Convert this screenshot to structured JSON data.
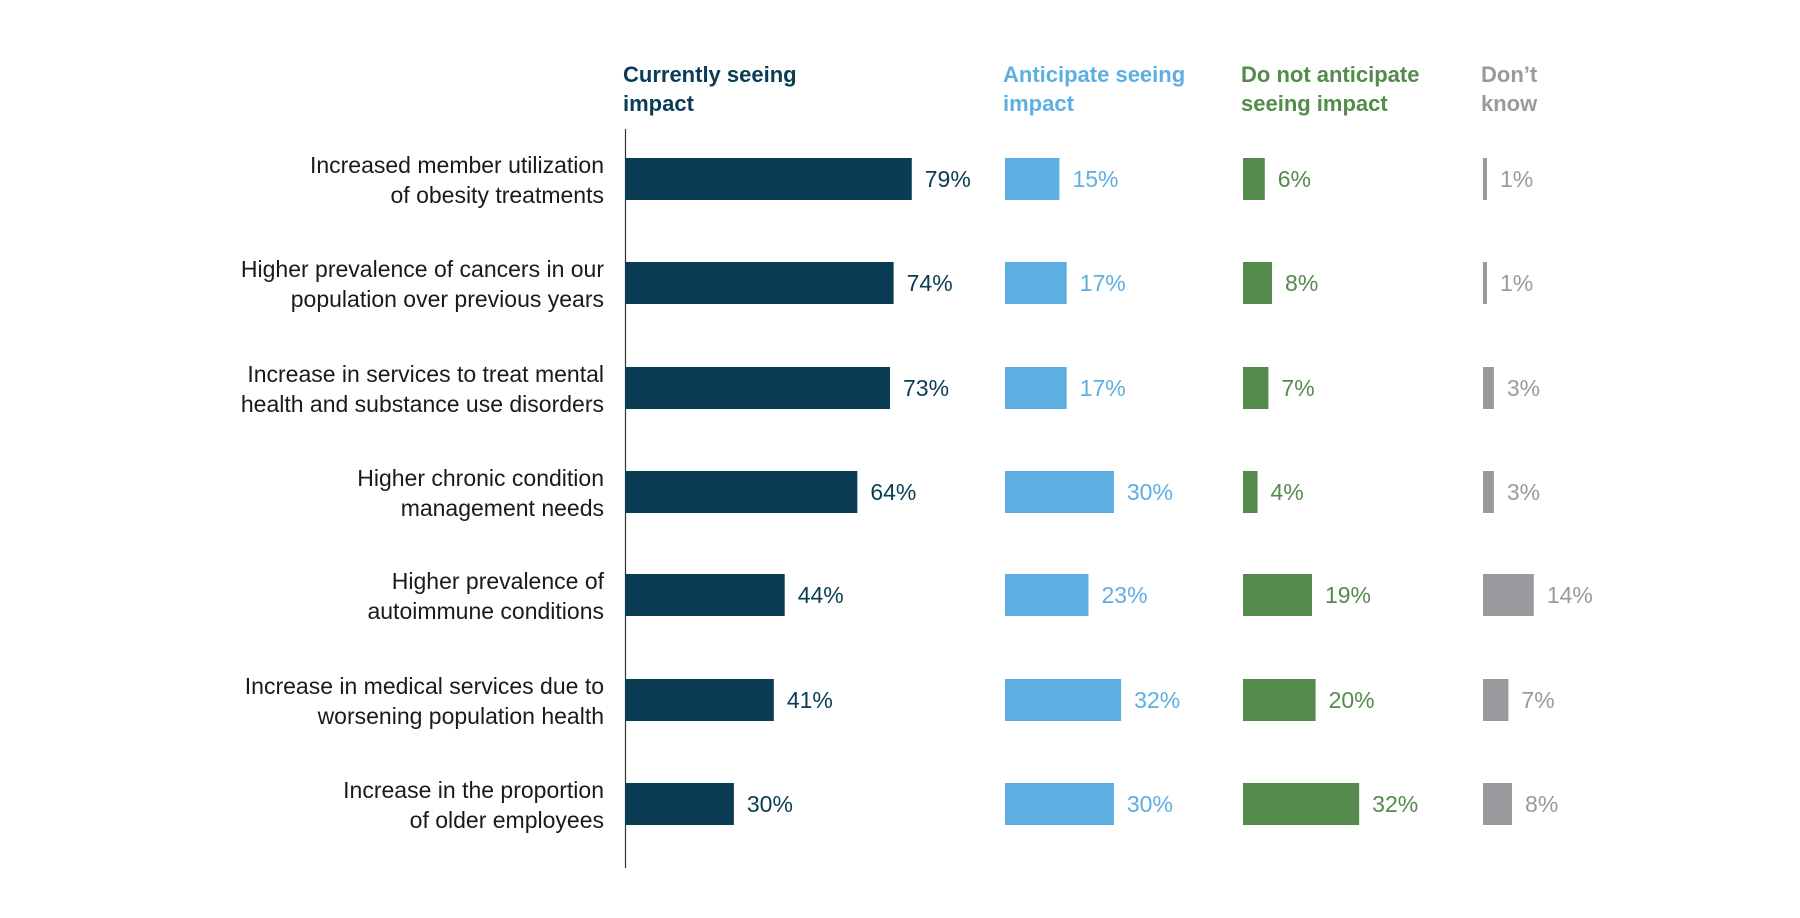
{
  "chart_data": {
    "type": "bar",
    "orientation": "horizontal",
    "layout": "small-multiples-by-column",
    "categories": [
      [
        "Increased member utilization",
        "of obesity treatments"
      ],
      [
        "Higher prevalence of cancers in our",
        "population over previous years"
      ],
      [
        "Increase in services to treat mental",
        "health and substance use disorders"
      ],
      [
        "Higher chronic condition",
        "management needs"
      ],
      [
        "Higher prevalence of",
        "autoimmune conditions"
      ],
      [
        "Increase in medical services due to",
        "worsening population health"
      ],
      [
        "Increase in the proportion",
        "of older employees"
      ]
    ],
    "series": [
      {
        "name": [
          "Currently seeing",
          "impact"
        ],
        "color": "#0b3c55",
        "values": [
          79,
          74,
          73,
          64,
          44,
          41,
          30
        ]
      },
      {
        "name": [
          "Anticipate seeing",
          "impact"
        ],
        "color": "#5eafe1",
        "values": [
          15,
          17,
          17,
          30,
          23,
          32,
          30
        ]
      },
      {
        "name": [
          "Do not anticipate",
          "seeing impact"
        ],
        "color": "#548a4b",
        "values": [
          6,
          8,
          7,
          4,
          19,
          20,
          32
        ]
      },
      {
        "name": [
          "Don’t",
          "know"
        ],
        "color": "#999a9e",
        "values": [
          1,
          1,
          3,
          3,
          14,
          7,
          8
        ]
      }
    ],
    "value_suffix": "%",
    "grid": false,
    "legend": "column headers"
  }
}
